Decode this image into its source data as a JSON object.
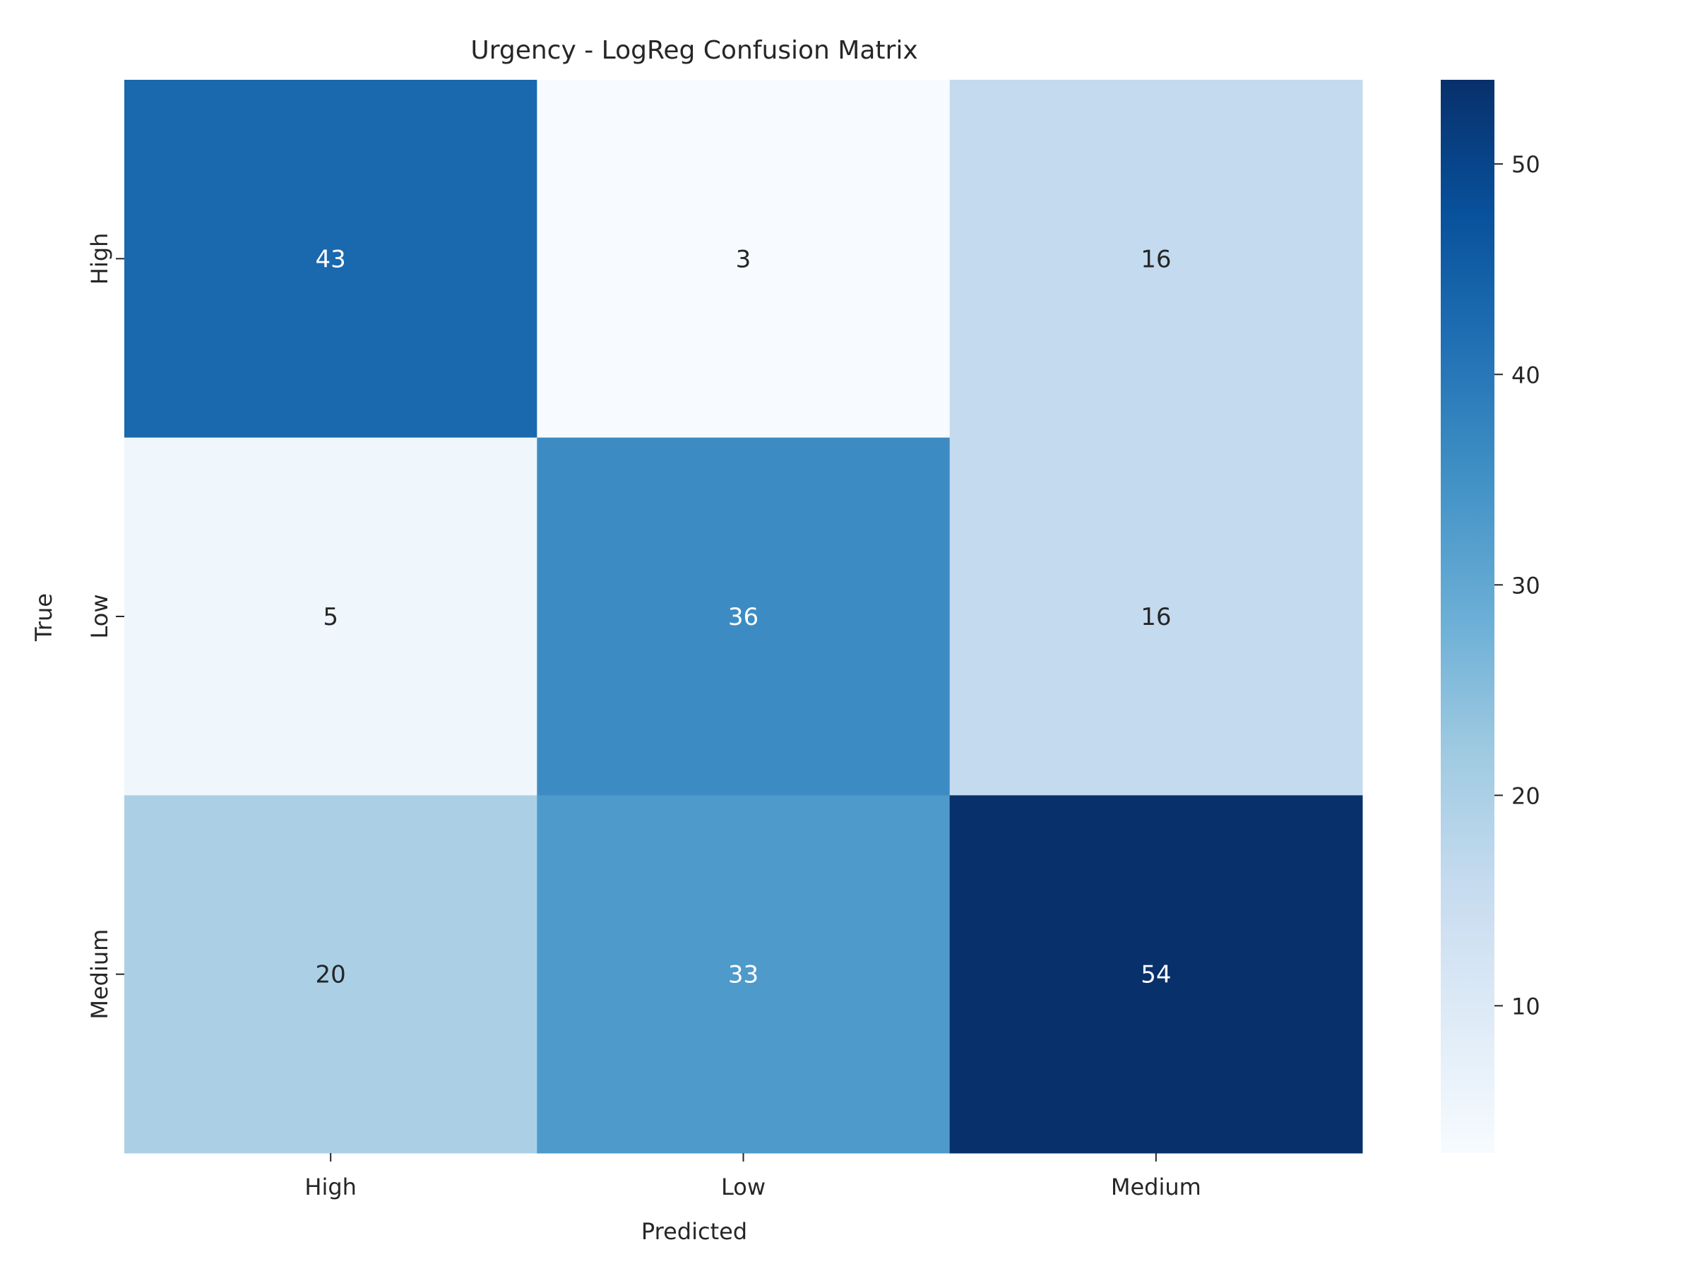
{
  "chart_data": {
    "type": "heatmap",
    "title": "Urgency - LogReg Confusion Matrix",
    "xlabel": "Predicted",
    "ylabel": "True",
    "x_categories": [
      "High",
      "Low",
      "Medium"
    ],
    "y_categories": [
      "High",
      "Low",
      "Medium"
    ],
    "values": [
      [
        43,
        3,
        16
      ],
      [
        5,
        36,
        16
      ],
      [
        20,
        33,
        54
      ]
    ],
    "colorbar": {
      "min": 3,
      "max": 54,
      "ticks": [
        "10",
        "20",
        "30",
        "40",
        "50"
      ],
      "colormap": "Blues"
    },
    "grid": false
  }
}
